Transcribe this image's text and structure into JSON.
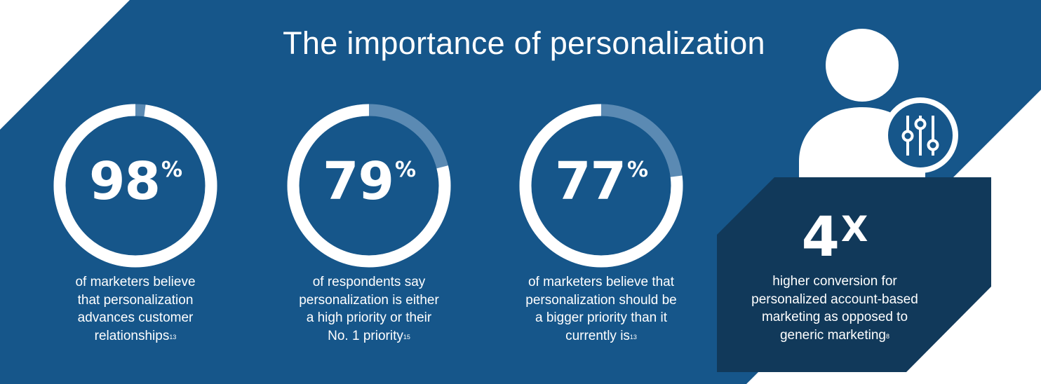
{
  "title": "The importance of personalization",
  "stats": [
    {
      "value": "98",
      "unit": "%",
      "fraction": 0.98,
      "caption_lines": [
        "of marketers believe",
        "that personalization",
        "advances customer",
        "relationships"
      ],
      "footnote": "13"
    },
    {
      "value": "79",
      "unit": "%",
      "fraction": 0.79,
      "caption_lines": [
        "of respondents say",
        "personalization is either",
        "a high priority or their",
        "No. 1 priority"
      ],
      "footnote": "15"
    },
    {
      "value": "77",
      "unit": "%",
      "fraction": 0.77,
      "caption_lines": [
        "of marketers believe that",
        "personalization should be",
        "a bigger priority than it",
        "currently is"
      ],
      "footnote": "13"
    }
  ],
  "highlight": {
    "value": "4",
    "unit": "X",
    "caption_lines": [
      "higher conversion for",
      "personalized account-based",
      "marketing as opposed to",
      "generic marketing"
    ],
    "footnote": "8"
  },
  "icons": {
    "person": "person-icon",
    "settings": "sliders-icon"
  },
  "colors": {
    "background": "#16568a",
    "panel": "#11395a",
    "ring": "#ffffff",
    "ring_remainder": "#5b8ab3",
    "page": "#ffffff"
  }
}
